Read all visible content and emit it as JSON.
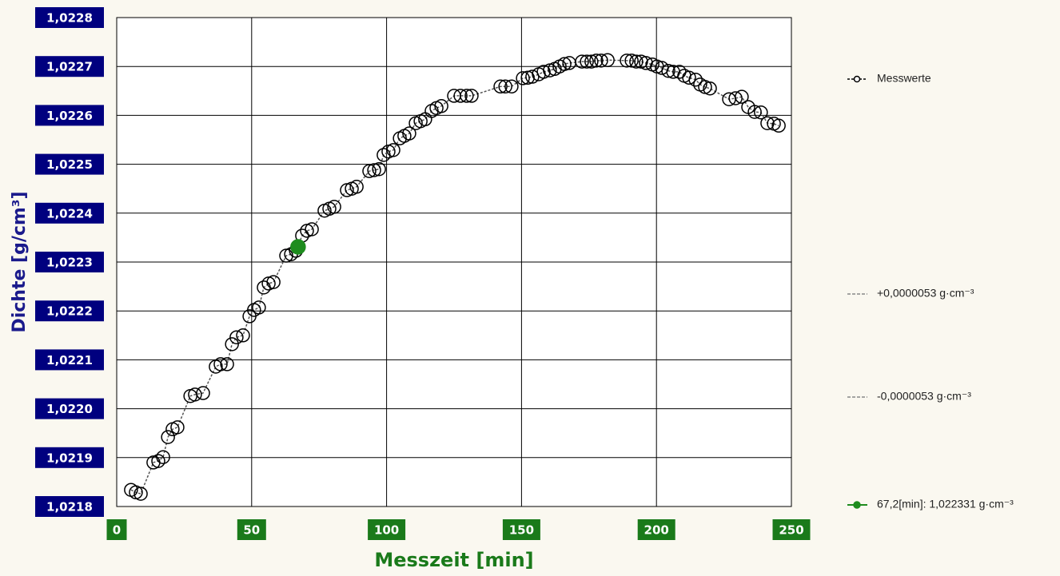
{
  "chart_data": {
    "type": "scatter",
    "xlabel": "Messzeit [min]",
    "ylabel": "Dichte [g/cm³]",
    "xlim": [
      0,
      250
    ],
    "ylim": [
      1.0218,
      1.0228
    ],
    "xticks": [
      0,
      50,
      100,
      150,
      200,
      250
    ],
    "yticks": [
      {
        "value": 1.0218,
        "label": "1,0218"
      },
      {
        "value": 1.0219,
        "label": "1,0219"
      },
      {
        "value": 1.022,
        "label": "1,0220"
      },
      {
        "value": 1.0221,
        "label": "1,0221"
      },
      {
        "value": 1.0222,
        "label": "1,0222"
      },
      {
        "value": 1.0223,
        "label": "1,0223"
      },
      {
        "value": 1.0224,
        "label": "1,0224"
      },
      {
        "value": 1.0225,
        "label": "1,0225"
      },
      {
        "value": 1.0226,
        "label": "1,0226"
      },
      {
        "value": 1.0227,
        "label": "1,0227"
      },
      {
        "value": 1.0228,
        "label": "1,0228"
      }
    ],
    "grid": true,
    "xtick_color": "#1a7a1a",
    "ytick_color": "#00007f",
    "tolerance_legend": [
      "+0,0000053 g·cm⁻³",
      "-0,0000053 g·cm⁻³"
    ],
    "series": [
      {
        "name": "Messwerte",
        "color": "#000000",
        "x": [
          5.3,
          7.1,
          8.9,
          13.6,
          15.4,
          17.2,
          19.0,
          20.7,
          22.5,
          27.3,
          29.0,
          32.0,
          36.7,
          38.5,
          40.9,
          42.7,
          44.4,
          46.8,
          49.2,
          50.9,
          52.7,
          54.5,
          56.3,
          58.1,
          62.8,
          64.6,
          66.4,
          68.7,
          70.5,
          72.3,
          77.0,
          78.8,
          80.6,
          85.3,
          87.1,
          88.9,
          93.6,
          95.4,
          97.2,
          98.9,
          100.7,
          102.5,
          104.9,
          106.6,
          108.4,
          110.8,
          112.6,
          114.3,
          116.7,
          118.5,
          120.3,
          125.0,
          127.4,
          129.7,
          131.5,
          142.2,
          144.0,
          146.3,
          150.5,
          152.3,
          154.0,
          156.4,
          158.2,
          160.5,
          162.3,
          164.1,
          165.9,
          167.7,
          172.4,
          174.2,
          175.9,
          177.7,
          179.5,
          181.9,
          189.0,
          190.8,
          192.5,
          194.3,
          196.1,
          198.5,
          200.2,
          202.0,
          204.4,
          206.2,
          208.5,
          210.3,
          212.1,
          214.5,
          216.2,
          218.0,
          219.8,
          226.9,
          229.3,
          231.6,
          234.0,
          236.4,
          238.7,
          241.1,
          243.5,
          245.3
        ],
        "values": [
          1.021834,
          1.021829,
          1.021826,
          1.02189,
          1.021893,
          1.021901,
          1.021942,
          1.021958,
          1.021962,
          1.022026,
          1.022029,
          1.022032,
          1.022086,
          1.022091,
          1.022091,
          1.022132,
          1.022146,
          1.02215,
          1.022189,
          1.022202,
          1.022207,
          1.022248,
          1.022256,
          1.022259,
          1.022313,
          1.022316,
          1.022323,
          1.022354,
          1.022364,
          1.022367,
          1.022405,
          1.022409,
          1.022413,
          1.022447,
          1.02245,
          1.022454,
          1.022486,
          1.022488,
          1.02249,
          1.022519,
          1.022526,
          1.022529,
          1.022553,
          1.022558,
          1.022563,
          1.022584,
          1.022588,
          1.022592,
          1.022609,
          1.022615,
          1.022619,
          1.02264,
          1.02264,
          1.02264,
          1.02264,
          1.022659,
          1.022659,
          1.022659,
          1.022676,
          1.022677,
          1.022679,
          1.022684,
          1.022689,
          1.022692,
          1.022695,
          1.0227,
          1.022705,
          1.022707,
          1.02271,
          1.02271,
          1.02271,
          1.022712,
          1.022712,
          1.022713,
          1.022712,
          1.022712,
          1.02271,
          1.02271,
          1.022707,
          1.022704,
          1.0227,
          1.022697,
          1.022691,
          1.022689,
          1.022689,
          1.022681,
          1.022677,
          1.022673,
          1.022663,
          1.022658,
          1.022655,
          1.022633,
          1.022635,
          1.022638,
          1.022617,
          1.022607,
          1.022606,
          1.022584,
          1.022583,
          1.022579
        ]
      },
      {
        "name": "67,2[min]: 1,022331 g·cm⁻³",
        "color": "#1e8c1e",
        "x": [
          67.2
        ],
        "values": [
          1.022331
        ]
      }
    ]
  }
}
